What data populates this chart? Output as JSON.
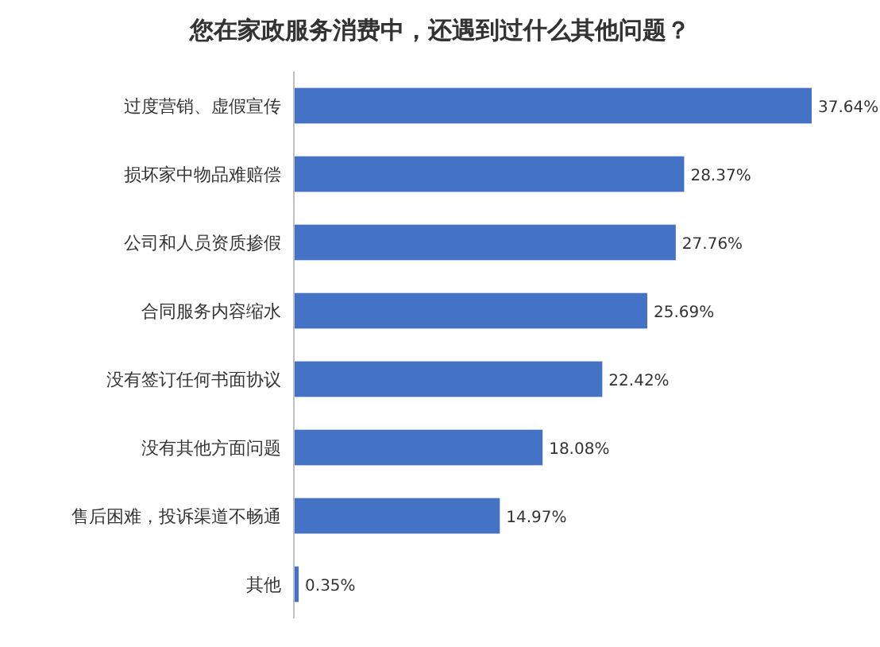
{
  "chart_data": {
    "type": "bar",
    "orientation": "horizontal",
    "title": "您在家政服务消费中，还遇到过什么其他问题？",
    "categories": [
      "过度营销、虚假宣传",
      "损坏家中物品难赔偿",
      "公司和人员资质掺假",
      "合同服务内容缩水",
      "没有签订任何书面协议",
      "没有其他方面问题",
      "售后困难，投诉渠道不畅通",
      "其他"
    ],
    "values": [
      37.64,
      28.37,
      27.76,
      25.69,
      22.42,
      18.08,
      14.97,
      0.35
    ],
    "color": "#4472c4",
    "value_labels": [
      "37.64%",
      "28.37%",
      "27.76%",
      "25.69%",
      "22.42%",
      "18.08%",
      "14.97%",
      "0.35%"
    ]
  }
}
